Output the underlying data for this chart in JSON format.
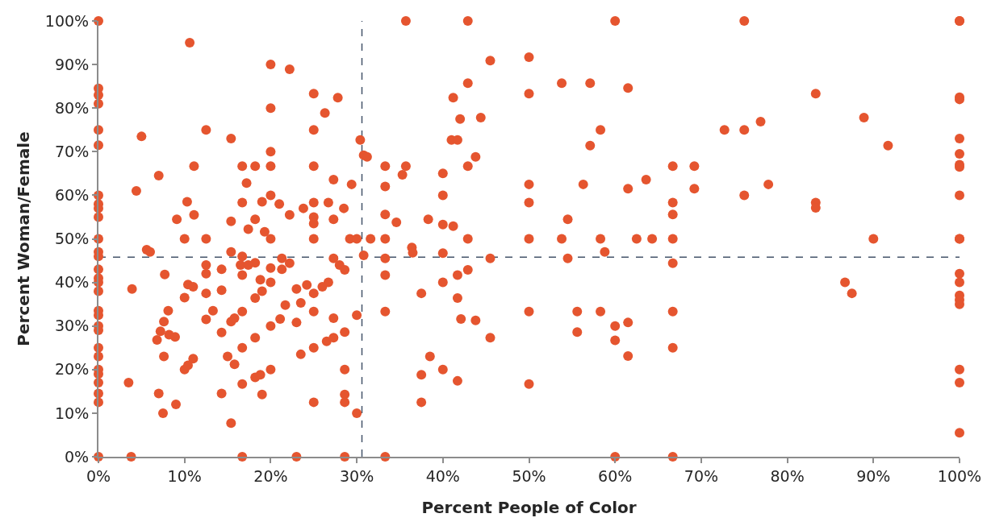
{
  "chart_data": {
    "type": "scatter",
    "xlabel": "Percent People of Color",
    "ylabel": "Percent Woman/Female",
    "xlim": [
      0,
      100
    ],
    "ylim": [
      0,
      100
    ],
    "xticks": [
      {
        "value": 0,
        "label": "0%"
      },
      {
        "value": 10,
        "label": "10%"
      },
      {
        "value": 20,
        "label": "20%"
      },
      {
        "value": 30,
        "label": "30%"
      },
      {
        "value": 40,
        "label": "40%"
      },
      {
        "value": 50,
        "label": "50%"
      },
      {
        "value": 60,
        "label": "60%"
      },
      {
        "value": 70,
        "label": "70%"
      },
      {
        "value": 80,
        "label": "80%"
      },
      {
        "value": 90,
        "label": "90%"
      },
      {
        "value": 100,
        "label": "100%"
      }
    ],
    "yticks": [
      {
        "value": 0,
        "label": "0%"
      },
      {
        "value": 10,
        "label": "10%"
      },
      {
        "value": 20,
        "label": "20%"
      },
      {
        "value": 30,
        "label": "30%"
      },
      {
        "value": 40,
        "label": "40%"
      },
      {
        "value": 50,
        "label": "50%"
      },
      {
        "value": 60,
        "label": "60%"
      },
      {
        "value": 70,
        "label": "70%"
      },
      {
        "value": 80,
        "label": "80%"
      },
      {
        "value": 90,
        "label": "90%"
      },
      {
        "value": 100,
        "label": "100%"
      }
    ],
    "grid": false,
    "marker": "circle",
    "ref_lines": [
      {
        "axis": "x",
        "value": 30.6,
        "color": "#44546a",
        "line_style": "dashed"
      },
      {
        "axis": "y",
        "value": 45.8,
        "color": "#44546a",
        "line_style": "dashed"
      }
    ],
    "series": [
      {
        "color": "#e5552f",
        "x": [
          0,
          0,
          0,
          0,
          0,
          0,
          0,
          0,
          0,
          0,
          0,
          0,
          0,
          0,
          0,
          0,
          0,
          0,
          0,
          0,
          0,
          0,
          0,
          0,
          0,
          0,
          0,
          0,
          0,
          100,
          100,
          100,
          100,
          100,
          100,
          100,
          100,
          100,
          100,
          100,
          100,
          100,
          100,
          100,
          100,
          100,
          100,
          100,
          3.5,
          3.8,
          3.9,
          4.4,
          5,
          5.6,
          6,
          6.8,
          7,
          7,
          7.2,
          7.5,
          7.6,
          7.6,
          7.7,
          8.1,
          8.2,
          8.9,
          9,
          9.1,
          10,
          10,
          10,
          10.3,
          10.4,
          10.4,
          10.6,
          11,
          11,
          11.1,
          11.1,
          12.5,
          12.5,
          12.5,
          12.5,
          12.5,
          12.5,
          13.3,
          14.3,
          14.3,
          14.3,
          14.3,
          15,
          15.4,
          15.4,
          15.4,
          15.4,
          15.4,
          15.8,
          15.8,
          16.5,
          16.7,
          16.7,
          16.7,
          16.7,
          16.7,
          16.7,
          16.7,
          16.7,
          17.2,
          17.4,
          17.4,
          18.2,
          18.2,
          18.2,
          18.2,
          18.2,
          18.2,
          18.8,
          18.8,
          19,
          19,
          19,
          19.3,
          20,
          20,
          20,
          20,
          20,
          20,
          20,
          20,
          20,
          20,
          21,
          21.1,
          21.3,
          21.3,
          21.7,
          22.2,
          22.2,
          22.2,
          23,
          23,
          23,
          23.5,
          23.5,
          23.8,
          24.2,
          25,
          25,
          25,
          25,
          25,
          25,
          25,
          25,
          25,
          25,
          25,
          26,
          26.3,
          26.5,
          26.7,
          26.7,
          27.3,
          27.3,
          27.3,
          27.3,
          27.3,
          27.8,
          28,
          28.5,
          28.6,
          28.6,
          28.6,
          28.6,
          28.6,
          28.6,
          29.2,
          29.4,
          30,
          30,
          30,
          30.4,
          30.8,
          30.8,
          31.2,
          31.6,
          33.3,
          33.3,
          33.3,
          33.3,
          33.3,
          33.3,
          33.3,
          33.3,
          34.6,
          35.3,
          35.7,
          35.7,
          36.4,
          36.5,
          37.5,
          37.5,
          37.5,
          38.3,
          38.5,
          40,
          40,
          40,
          40,
          40,
          40,
          41,
          41.2,
          41.2,
          41.7,
          41.7,
          41.7,
          41.7,
          42,
          42.1,
          42.9,
          42.9,
          42.9,
          42.9,
          42.9,
          43.8,
          43.8,
          44.4,
          45.5,
          45.5,
          45.5,
          50,
          50,
          50,
          50,
          50,
          50,
          50,
          53.8,
          53.8,
          54.5,
          54.5,
          55.6,
          55.6,
          56.3,
          57.1,
          57.1,
          58.3,
          58.3,
          58.3,
          58.8,
          60,
          60,
          60,
          60,
          61.5,
          61.5,
          61.5,
          61.5,
          62.5,
          63.6,
          64.3,
          66.7,
          66.7,
          66.7,
          66.7,
          66.7,
          66.7,
          66.7,
          66.7,
          69.2,
          69.2,
          72.7,
          75,
          75,
          75,
          76.9,
          77.8,
          83.3,
          83.3,
          83.3,
          86.7,
          87.5,
          88.9,
          90,
          91.7
        ],
        "values": [
          100,
          84.5,
          83,
          81,
          75,
          71.5,
          60,
          58,
          57,
          55,
          50,
          47,
          46,
          43,
          41,
          40,
          38,
          33.5,
          32.5,
          30,
          29,
          25,
          23,
          20,
          19,
          17,
          14.5,
          12.5,
          0,
          100,
          100,
          82.5,
          82,
          73,
          69.5,
          67,
          66.5,
          60,
          50,
          50,
          42,
          40,
          37,
          36,
          35,
          20,
          17,
          5.5,
          17,
          0,
          38.5,
          61,
          73.5,
          47.5,
          47,
          26.8,
          64.5,
          14.5,
          28.8,
          10,
          31,
          23,
          41.8,
          33.5,
          28,
          27.5,
          12,
          54.5,
          50,
          36.5,
          20,
          58.5,
          39.5,
          21,
          95,
          39,
          22.5,
          55.5,
          66.7,
          75,
          50,
          44,
          42,
          37.5,
          31.5,
          33.5,
          43,
          38.2,
          28.5,
          14.5,
          23,
          73,
          54,
          47,
          31,
          7.7,
          21.2,
          31.8,
          44,
          66.7,
          58.3,
          46,
          41.7,
          33.3,
          25,
          16.7,
          0,
          62.8,
          52.2,
          44,
          66.7,
          54.5,
          44.5,
          36.4,
          27.3,
          18.2,
          40.6,
          18.8,
          58.5,
          38,
          14.3,
          51.6,
          90,
          80,
          70,
          66.7,
          60,
          50,
          43.3,
          40,
          30,
          20,
          58,
          31.6,
          45.5,
          43,
          34.8,
          88.9,
          55.5,
          44.4,
          38.5,
          30.8,
          0,
          35.3,
          23.5,
          57,
          39.4,
          83.3,
          75,
          66.7,
          58.3,
          55,
          53.5,
          50,
          37.5,
          33.3,
          25,
          12.5,
          39,
          78.9,
          26.5,
          40,
          58.3,
          63.6,
          54.5,
          45.5,
          31.8,
          27.3,
          82.4,
          44,
          57,
          42.9,
          28.6,
          20,
          14.3,
          12.5,
          0,
          50,
          62.5,
          50,
          32.5,
          10,
          72.7,
          69.2,
          46.2,
          68.8,
          50,
          66.7,
          62,
          55.6,
          50,
          45.5,
          41.7,
          33.3,
          0,
          53.8,
          64.7,
          100,
          66.7,
          48,
          46.8,
          37.5,
          18.8,
          12.5,
          54.5,
          23,
          65,
          60,
          53.3,
          46.7,
          40,
          20,
          72.7,
          82.4,
          52.9,
          72.7,
          41.7,
          36.4,
          17.4,
          77.5,
          31.6,
          100,
          85.7,
          66.7,
          50,
          42.9,
          68.8,
          31.3,
          77.8,
          90.9,
          45.5,
          27.3,
          91.7,
          83.3,
          62.5,
          58.3,
          50,
          33.3,
          16.7,
          85.7,
          50,
          54.5,
          45.5,
          33.3,
          28.6,
          62.5,
          85.7,
          71.4,
          75,
          50,
          33.3,
          47,
          100,
          30,
          26.7,
          0,
          84.6,
          61.5,
          30.8,
          23.1,
          50,
          63.6,
          50,
          66.7,
          58.3,
          55.6,
          50,
          44.4,
          33.3,
          25,
          0,
          66.7,
          61.5,
          75,
          100,
          75,
          60,
          76.9,
          62.5,
          83.3,
          58.3,
          57.1,
          40,
          37.5,
          77.8,
          50,
          71.4
        ]
      }
    ]
  }
}
